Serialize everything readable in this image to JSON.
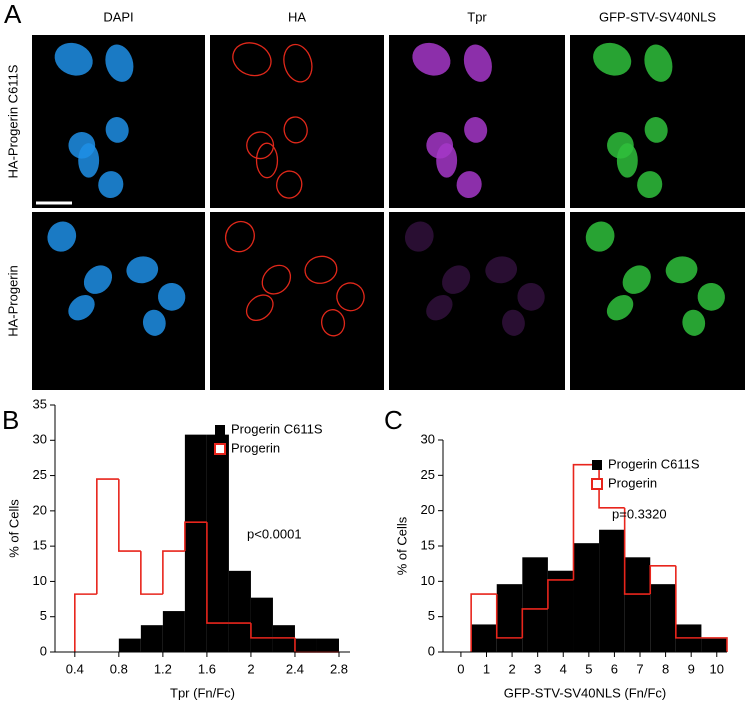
{
  "panel_labels": [
    "A",
    "B",
    "C"
  ],
  "figure_a": {
    "columns": [
      "DAPI",
      "HA",
      "Tpr",
      "GFP-STV-SV40NLS"
    ],
    "rows": [
      "HA-Progerin C611S",
      "HA-Progerin"
    ]
  },
  "chart_data": [
    {
      "type": "histogram",
      "xlabel": "Tpr (Fn/Fc)",
      "ylabel": "% of Cells",
      "annotation": "p<0.0001",
      "bins": [
        0.4,
        0.6,
        0.8,
        1.0,
        1.2,
        1.4,
        1.6,
        1.8,
        2.0,
        2.2,
        2.4,
        2.6,
        2.8
      ],
      "series": [
        {
          "name": "Progerin C611S",
          "color": "#000000",
          "style": "filled",
          "values": [
            0,
            0,
            1.9,
            3.8,
            5.8,
            30.8,
            30.8,
            11.5,
            7.7,
            3.8,
            1.9,
            1.9
          ]
        },
        {
          "name": "Progerin",
          "color": "#e8251c",
          "style": "step",
          "values": [
            8.2,
            24.5,
            14.3,
            8.2,
            14.3,
            18.4,
            4.1,
            4.1,
            2,
            2,
            0,
            0
          ]
        }
      ],
      "xlim": [
        0.22,
        2.9
      ],
      "xticks": [
        0.4,
        0.8,
        1.2,
        1.6,
        2,
        2.4,
        2.8
      ],
      "ylim": [
        0,
        35
      ],
      "yticks": [
        0,
        5,
        10,
        15,
        20,
        25,
        30,
        35
      ],
      "legend": "upper right"
    },
    {
      "type": "histogram",
      "xlabel": "GFP-STV-SV40NLS (Fn/Fc)",
      "ylabel": "% of Cells",
      "annotation": "p=0.3320",
      "bins": [
        0.4,
        1.4,
        2.4,
        3.4,
        4.4,
        5.4,
        6.4,
        7.4,
        8.4,
        9.4,
        10.4
      ],
      "series": [
        {
          "name": "Progerin C611S",
          "color": "#000000",
          "style": "filled",
          "values": [
            3.9,
            9.6,
            13.4,
            11.5,
            15.4,
            17.3,
            13.4,
            9.6,
            3.9,
            1.9
          ]
        },
        {
          "name": "Progerin",
          "color": "#e8251c",
          "style": "step",
          "values": [
            8.2,
            2,
            6.1,
            10.2,
            26.5,
            20.4,
            8.2,
            12.2,
            2,
            2
          ]
        }
      ],
      "xlim": [
        -0.7,
        10.4
      ],
      "xticks": [
        0,
        1,
        2,
        3,
        4,
        5,
        6,
        7,
        8,
        9,
        10
      ],
      "ylim": [
        0,
        30
      ],
      "yticks": [
        0,
        5,
        10,
        15,
        20,
        25,
        30
      ],
      "legend": "upper right"
    }
  ]
}
